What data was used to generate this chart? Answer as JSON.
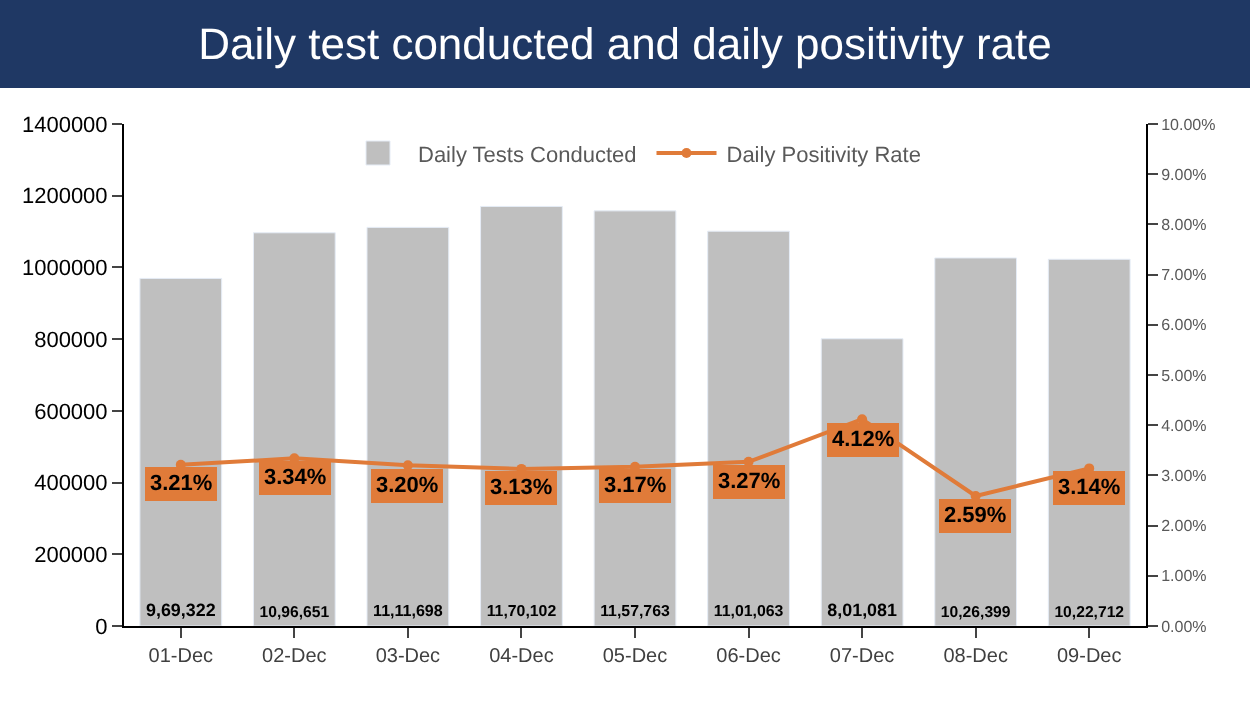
{
  "chart_data": {
    "type": "bar",
    "title": "Daily test conducted and daily positivity rate",
    "categories": [
      "01-Dec",
      "02-Dec",
      "03-Dec",
      "04-Dec",
      "05-Dec",
      "06-Dec",
      "07-Dec",
      "08-Dec",
      "09-Dec"
    ],
    "series": [
      {
        "name": "Daily Tests Conducted",
        "color": "#bfbfbf",
        "values": [
          969322,
          1096651,
          1111698,
          1170102,
          1157763,
          1101063,
          801081,
          1026399,
          1022712
        ],
        "value_labels": [
          "9,69,322",
          "10,96,651",
          "11,11,698",
          "11,70,102",
          "11,57,763",
          "11,01,063",
          "8,01,081",
          "10,26,399",
          "10,22,712"
        ]
      },
      {
        "name": "Daily Positivity Rate",
        "type": "line",
        "axis": "y2",
        "color": "#e07b39",
        "marker": "circle",
        "values": [
          3.21,
          3.34,
          3.2,
          3.13,
          3.17,
          3.27,
          4.12,
          2.59,
          3.14
        ],
        "value_labels": [
          "3.21%",
          "3.34%",
          "3.20%",
          "3.13%",
          "3.17%",
          "3.27%",
          "4.12%",
          "2.59%",
          "3.14%"
        ]
      }
    ],
    "ylim": [
      0,
      1400000
    ],
    "yticks": [
      0,
      200000,
      400000,
      600000,
      800000,
      1000000,
      1200000,
      1400000
    ],
    "y2lim": [
      0,
      10
    ],
    "y2ticks": [
      {
        "value": 0,
        "label": "0.00%"
      },
      {
        "value": 1,
        "label": "1.00%"
      },
      {
        "value": 2,
        "label": "2.00%"
      },
      {
        "value": 3,
        "label": "3.00%"
      },
      {
        "value": 4,
        "label": "4.00%"
      },
      {
        "value": 5,
        "label": "5.00%"
      },
      {
        "value": 6,
        "label": "6.00%"
      },
      {
        "value": 7,
        "label": "7.00%"
      },
      {
        "value": 8,
        "label": "8.00%"
      },
      {
        "value": 9,
        "label": "9.00%"
      },
      {
        "value": 10,
        "label": "10.00%"
      }
    ],
    "grid": false,
    "legend": "top"
  }
}
